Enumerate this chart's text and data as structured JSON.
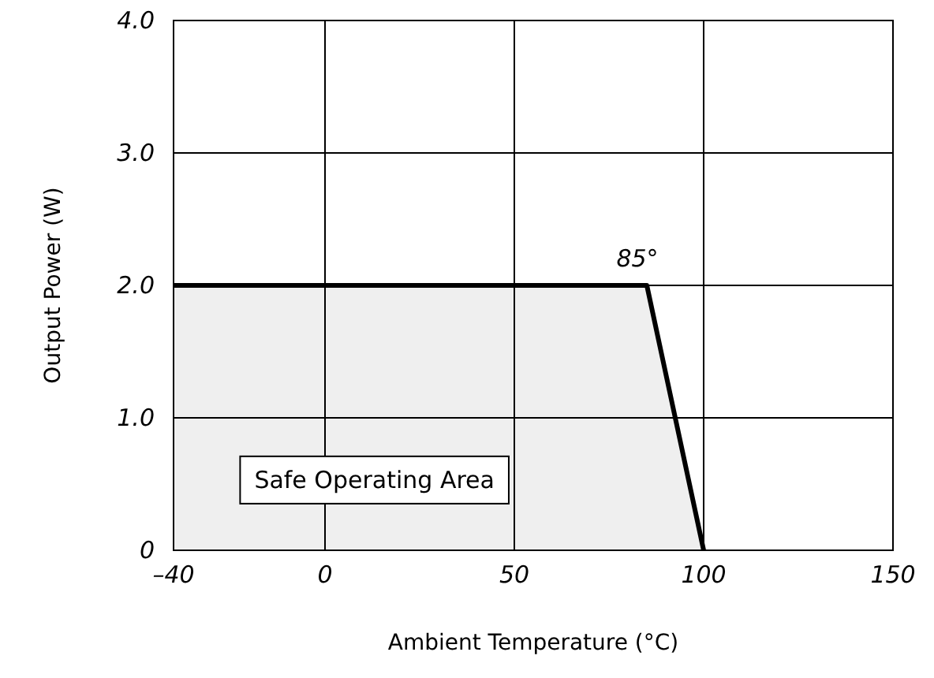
{
  "chart_data": {
    "type": "area",
    "xlabel": "Ambient Temperature (°C)",
    "ylabel": "Output Power (W)",
    "x": [
      -40,
      85,
      100
    ],
    "series": [
      {
        "color": "#000000",
        "values": [
          2,
          2,
          0
        ]
      }
    ],
    "xlim": [
      -40,
      150
    ],
    "xticks": [
      {
        "value": -40,
        "label": "–40"
      },
      0,
      50,
      100,
      150
    ],
    "ylim": [
      0,
      4
    ],
    "yticks": [
      0,
      {
        "value": 1,
        "label": "1.0"
      },
      {
        "value": 2,
        "label": "2.0"
      },
      {
        "value": 3,
        "label": "3.0"
      },
      {
        "value": 4,
        "label": "4.0"
      }
    ],
    "grid": true,
    "annotations": [
      {
        "text": "85°",
        "x": 85,
        "y": 2
      },
      "Safe Operating Area"
    ]
  }
}
